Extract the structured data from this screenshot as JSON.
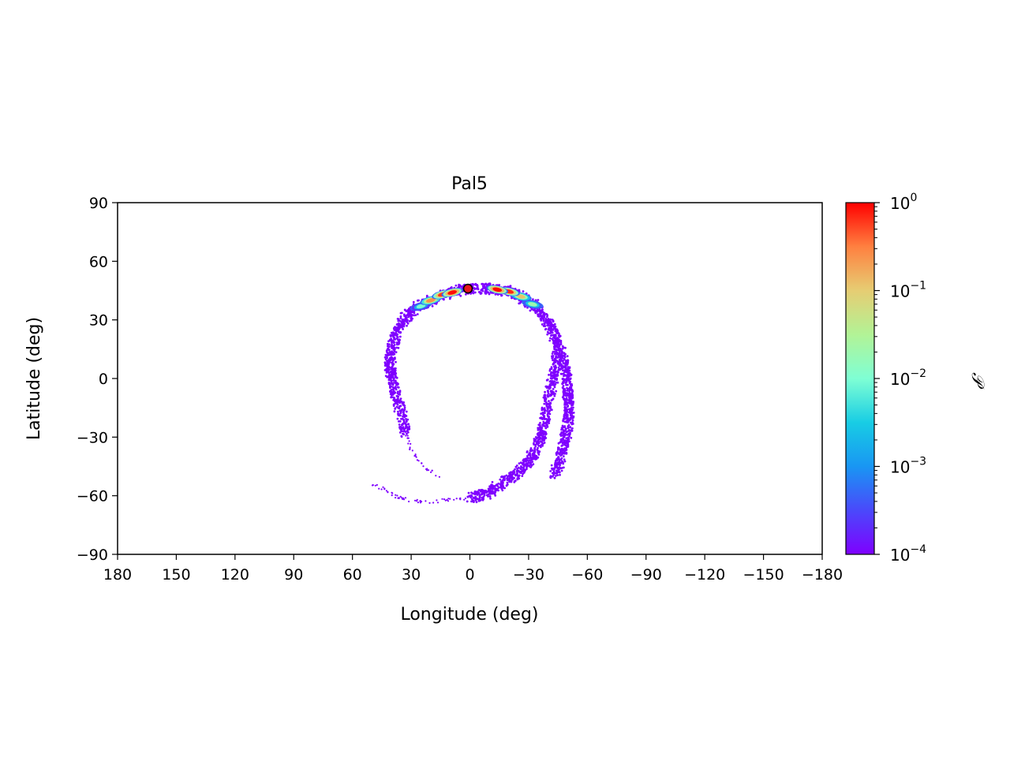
{
  "chart_data": {
    "type": "scatter",
    "title": "Pal5",
    "xlabel": "Longitude (deg)",
    "ylabel": "Latitude (deg)",
    "xlim": [
      180,
      -180
    ],
    "ylim": [
      -90,
      90
    ],
    "x_ticks": [
      180,
      150,
      120,
      90,
      60,
      30,
      0,
      -30,
      -60,
      -90,
      -120,
      -150,
      -180
    ],
    "x_tick_labels": [
      "180",
      "150",
      "120",
      "90",
      "60",
      "30",
      "0",
      "−30",
      "−60",
      "−90",
      "−120",
      "−150",
      "−180"
    ],
    "y_ticks": [
      90,
      60,
      30,
      0,
      -30,
      -60,
      -90
    ],
    "y_tick_labels": [
      "90",
      "60",
      "30",
      "0",
      "−30",
      "−60",
      "−90"
    ],
    "grid": false,
    "colormap": "rainbow",
    "colorbar": {
      "label": "𝒫",
      "scale": "log",
      "range": [
        0.0001,
        1
      ],
      "ticks": [
        {
          "value": 1,
          "base": "10",
          "exp": "0"
        },
        {
          "value": 0.1,
          "base": "10",
          "exp": "−1"
        },
        {
          "value": 0.01,
          "base": "10",
          "exp": "−2"
        },
        {
          "value": 0.001,
          "base": "10",
          "exp": "−3"
        },
        {
          "value": 0.0001,
          "base": "10",
          "exp": "−4"
        }
      ]
    },
    "progenitor": {
      "lon": 1,
      "lat": 46,
      "color": "#e8141c"
    },
    "stream_tracks": [
      {
        "name": "arm-left-upper",
        "points": [
          [
            0,
            46
          ],
          [
            8,
            44.5
          ],
          [
            16,
            42
          ],
          [
            24,
            38
          ],
          [
            30,
            34
          ],
          [
            35,
            29
          ],
          [
            38,
            22
          ],
          [
            40,
            14
          ],
          [
            41,
            6
          ],
          [
            40,
            1
          ],
          [
            38,
            -8
          ],
          [
            35,
            -18
          ],
          [
            33,
            -28
          ]
        ]
      },
      {
        "name": "arm-left-sparse",
        "points": [
          [
            33,
            -28
          ],
          [
            30,
            -37
          ],
          [
            25,
            -44
          ],
          [
            16,
            -50
          ]
        ]
      },
      {
        "name": "arm-right-upper",
        "points": [
          [
            0,
            46
          ],
          [
            -10,
            46
          ],
          [
            -18,
            45
          ],
          [
            -26,
            42
          ],
          [
            -32,
            38
          ],
          [
            -37,
            33
          ],
          [
            -41,
            27
          ],
          [
            -44,
            20
          ],
          [
            -47,
            12
          ],
          [
            -49,
            4
          ],
          [
            -50,
            -4
          ],
          [
            -50,
            -12
          ]
        ]
      },
      {
        "name": "arm-right-inner",
        "points": [
          [
            -45,
            15
          ],
          [
            -44,
            6
          ],
          [
            -42,
            -2
          ],
          [
            -40,
            -12
          ],
          [
            -38,
            -22
          ],
          [
            -36,
            -30
          ]
        ]
      },
      {
        "name": "arm-right-outer",
        "points": [
          [
            -50,
            -8
          ],
          [
            -51,
            -16
          ],
          [
            -50,
            -24
          ],
          [
            -48,
            -33
          ],
          [
            -46,
            -42
          ],
          [
            -43,
            -50
          ]
        ]
      },
      {
        "name": "arm-right-lower",
        "points": [
          [
            -36,
            -30
          ],
          [
            -33,
            -38
          ],
          [
            -29,
            -44
          ],
          [
            -22,
            -50
          ],
          [
            -15,
            -55
          ],
          [
            -8,
            -59
          ],
          [
            -1,
            -61
          ]
        ]
      },
      {
        "name": "tail-bottom",
        "points": [
          [
            -1,
            -61
          ],
          [
            8,
            -62
          ],
          [
            18,
            -63
          ],
          [
            28,
            -63
          ],
          [
            36,
            -61
          ],
          [
            42,
            -58
          ],
          [
            50,
            -54
          ]
        ]
      }
    ],
    "density_peaks": [
      {
        "lon": 9,
        "lat": 44,
        "value": 0.9
      },
      {
        "lon": 14,
        "lat": 43,
        "value": 0.6
      },
      {
        "lon": 20,
        "lat": 40,
        "value": 0.25
      },
      {
        "lon": -14,
        "lat": 45.5,
        "value": 0.95
      },
      {
        "lon": -20,
        "lat": 44.5,
        "value": 0.7
      },
      {
        "lon": -26,
        "lat": 42,
        "value": 0.12
      },
      {
        "lon": -32,
        "lat": 38,
        "value": 0.02
      },
      {
        "lon": 25,
        "lat": 37,
        "value": 0.01
      }
    ]
  }
}
